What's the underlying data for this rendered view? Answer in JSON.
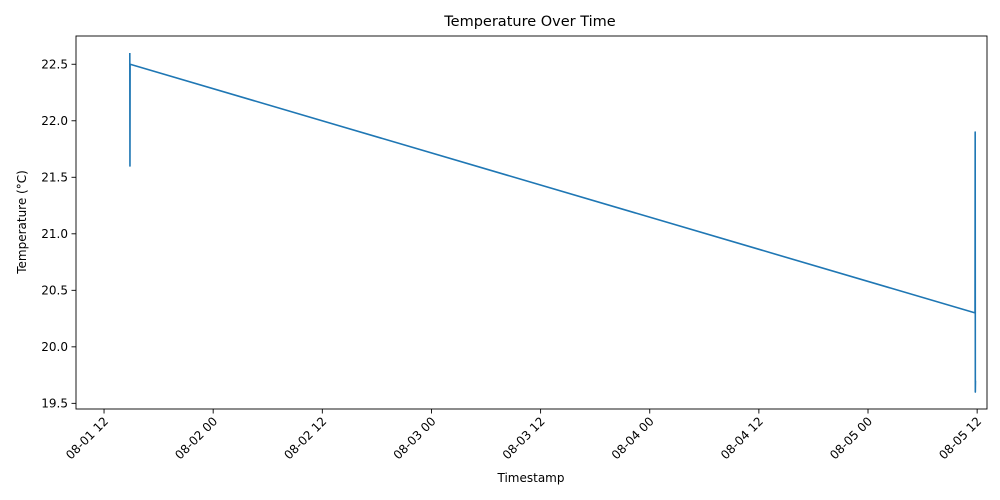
{
  "chart_data": {
    "type": "line",
    "title": "Temperature Over Time",
    "xlabel": "Timestamp",
    "ylabel": "Temperature (°C)",
    "x_axis_kind": "datetime",
    "xlim": [
      "2024-08-01 08:55",
      "2024-08-05 13:05"
    ],
    "ylim": [
      19.45,
      22.75
    ],
    "grid": false,
    "x_ticks": [
      {
        "value": "2024-08-01 12:00",
        "label": "08-01 12"
      },
      {
        "value": "2024-08-02 00:00",
        "label": "08-02 00"
      },
      {
        "value": "2024-08-02 12:00",
        "label": "08-02 12"
      },
      {
        "value": "2024-08-03 00:00",
        "label": "08-03 00"
      },
      {
        "value": "2024-08-03 12:00",
        "label": "08-03 12"
      },
      {
        "value": "2024-08-04 00:00",
        "label": "08-04 00"
      },
      {
        "value": "2024-08-04 12:00",
        "label": "08-04 12"
      },
      {
        "value": "2024-08-05 00:00",
        "label": "08-05 00"
      },
      {
        "value": "2024-08-05 12:00",
        "label": "08-05 12"
      }
    ],
    "y_ticks": [
      19.5,
      20.0,
      20.5,
      21.0,
      21.5,
      22.0,
      22.5
    ],
    "y_tick_labels": [
      "19.5",
      "20.0",
      "20.5",
      "21.0",
      "21.5",
      "22.0",
      "22.5"
    ],
    "series": [
      {
        "color": "#1f77b4",
        "points": [
          {
            "x": "2024-08-01 14:50",
            "y": 22.6
          },
          {
            "x": "2024-08-01 14:51",
            "y": 21.6
          },
          {
            "x": "2024-08-01 14:52",
            "y": 22.5
          },
          {
            "x": "2024-08-05 11:46",
            "y": 20.3
          },
          {
            "x": "2024-08-05 11:47",
            "y": 21.9
          },
          {
            "x": "2024-08-05 11:48",
            "y": 19.6
          },
          {
            "x": "2024-08-05 11:49",
            "y": 19.7
          }
        ]
      }
    ]
  }
}
